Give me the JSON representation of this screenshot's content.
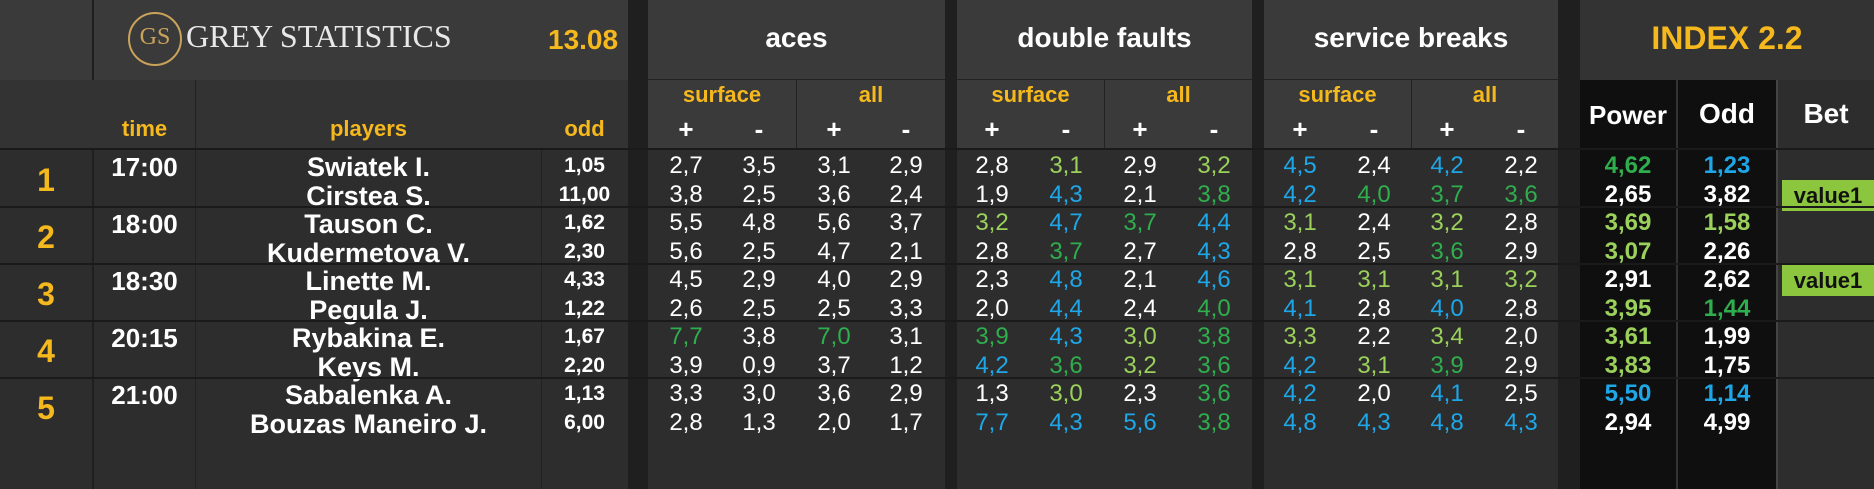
{
  "brand": {
    "logo_text": "GS",
    "name": "GREY STATISTICS",
    "date": "13.08"
  },
  "groups": {
    "aces": "aces",
    "double_faults": "double faults",
    "service_breaks": "service breaks",
    "index": "INDEX 2.2"
  },
  "subgroups": {
    "surface": "surface",
    "all": "all",
    "plus": "+",
    "minus": "-"
  },
  "columns": {
    "time": "time",
    "players": "players",
    "odd": "odd",
    "power": "Power",
    "index_odd": "Odd",
    "bet": "Bet"
  },
  "colors": {
    "accent": "#f5b81d",
    "white": "#ffffff",
    "light_green": "#9bd15b",
    "green": "#2fae4e",
    "blue": "#1ea7e8",
    "bet_bg": "#8cc63e"
  },
  "matches": [
    {
      "num": "1",
      "time": "17:00",
      "players": [
        {
          "name": "Swiatek I.",
          "odd": "1,05",
          "stats": [
            [
              "2,7",
              "w"
            ],
            [
              "3,5",
              "w"
            ],
            [
              "3,1",
              "w"
            ],
            [
              "2,9",
              "w"
            ],
            [
              "2,8",
              "w"
            ],
            [
              "3,1",
              "lg"
            ],
            [
              "2,9",
              "w"
            ],
            [
              "3,2",
              "lg"
            ],
            [
              "4,5",
              "b"
            ],
            [
              "2,4",
              "w"
            ],
            [
              "4,2",
              "b"
            ],
            [
              "2,2",
              "w"
            ]
          ],
          "power": [
            "4,62",
            "g"
          ],
          "index_odd": [
            "1,23",
            "b"
          ],
          "bet": ""
        },
        {
          "name": "Cirstea S.",
          "odd": "11,00",
          "stats": [
            [
              "3,8",
              "w"
            ],
            [
              "2,5",
              "w"
            ],
            [
              "3,6",
              "w"
            ],
            [
              "2,4",
              "w"
            ],
            [
              "1,9",
              "w"
            ],
            [
              "4,3",
              "b"
            ],
            [
              "2,1",
              "w"
            ],
            [
              "3,8",
              "g"
            ],
            [
              "4,2",
              "b"
            ],
            [
              "4,0",
              "g"
            ],
            [
              "3,7",
              "g"
            ],
            [
              "3,6",
              "g"
            ]
          ],
          "power": [
            "2,65",
            "w"
          ],
          "index_odd": [
            "3,82",
            "w"
          ],
          "bet": "value1"
        }
      ]
    },
    {
      "num": "2",
      "time": "18:00",
      "players": [
        {
          "name": "Tauson C.",
          "odd": "1,62",
          "stats": [
            [
              "5,5",
              "w"
            ],
            [
              "4,8",
              "w"
            ],
            [
              "5,6",
              "w"
            ],
            [
              "3,7",
              "w"
            ],
            [
              "3,2",
              "lg"
            ],
            [
              "4,7",
              "b"
            ],
            [
              "3,7",
              "g"
            ],
            [
              "4,4",
              "b"
            ],
            [
              "3,1",
              "lg"
            ],
            [
              "2,4",
              "w"
            ],
            [
              "3,2",
              "lg"
            ],
            [
              "2,8",
              "w"
            ]
          ],
          "power": [
            "3,69",
            "lg"
          ],
          "index_odd": [
            "1,58",
            "lg"
          ],
          "bet": ""
        },
        {
          "name": "Kudermetova V.",
          "odd": "2,30",
          "stats": [
            [
              "5,6",
              "w"
            ],
            [
              "2,5",
              "w"
            ],
            [
              "4,7",
              "w"
            ],
            [
              "2,1",
              "w"
            ],
            [
              "2,8",
              "w"
            ],
            [
              "3,7",
              "g"
            ],
            [
              "2,7",
              "w"
            ],
            [
              "4,3",
              "b"
            ],
            [
              "2,8",
              "w"
            ],
            [
              "2,5",
              "w"
            ],
            [
              "3,6",
              "g"
            ],
            [
              "2,9",
              "w"
            ]
          ],
          "power": [
            "3,07",
            "lg"
          ],
          "index_odd": [
            "2,26",
            "w"
          ],
          "bet": ""
        }
      ]
    },
    {
      "num": "3",
      "time": "18:30",
      "players": [
        {
          "name": "Linette M.",
          "odd": "4,33",
          "stats": [
            [
              "4,5",
              "w"
            ],
            [
              "2,9",
              "w"
            ],
            [
              "4,0",
              "w"
            ],
            [
              "2,9",
              "w"
            ],
            [
              "2,3",
              "w"
            ],
            [
              "4,8",
              "b"
            ],
            [
              "2,1",
              "w"
            ],
            [
              "4,6",
              "b"
            ],
            [
              "3,1",
              "lg"
            ],
            [
              "3,1",
              "lg"
            ],
            [
              "3,1",
              "lg"
            ],
            [
              "3,2",
              "lg"
            ]
          ],
          "power": [
            "2,91",
            "w"
          ],
          "index_odd": [
            "2,62",
            "w"
          ],
          "bet": "value1"
        },
        {
          "name": "Pegula J.",
          "odd": "1,22",
          "stats": [
            [
              "2,6",
              "w"
            ],
            [
              "2,5",
              "w"
            ],
            [
              "2,5",
              "w"
            ],
            [
              "3,3",
              "w"
            ],
            [
              "2,0",
              "w"
            ],
            [
              "4,4",
              "b"
            ],
            [
              "2,4",
              "w"
            ],
            [
              "4,0",
              "g"
            ],
            [
              "4,1",
              "b"
            ],
            [
              "2,8",
              "w"
            ],
            [
              "4,0",
              "b"
            ],
            [
              "2,8",
              "w"
            ]
          ],
          "power": [
            "3,95",
            "lg"
          ],
          "index_odd": [
            "1,44",
            "g"
          ],
          "bet": ""
        }
      ]
    },
    {
      "num": "4",
      "time": "20:15",
      "players": [
        {
          "name": "Rybakina E.",
          "odd": "1,67",
          "stats": [
            [
              "7,7",
              "g"
            ],
            [
              "3,8",
              "w"
            ],
            [
              "7,0",
              "g"
            ],
            [
              "3,1",
              "w"
            ],
            [
              "3,9",
              "g"
            ],
            [
              "4,3",
              "b"
            ],
            [
              "3,0",
              "lg"
            ],
            [
              "3,8",
              "g"
            ],
            [
              "3,3",
              "lg"
            ],
            [
              "2,2",
              "w"
            ],
            [
              "3,4",
              "lg"
            ],
            [
              "2,0",
              "w"
            ]
          ],
          "power": [
            "3,61",
            "lg"
          ],
          "index_odd": [
            "1,99",
            "w"
          ],
          "bet": ""
        },
        {
          "name": "Keys M.",
          "odd": "2,20",
          "stats": [
            [
              "3,9",
              "w"
            ],
            [
              "0,9",
              "w"
            ],
            [
              "3,7",
              "w"
            ],
            [
              "1,2",
              "w"
            ],
            [
              "4,2",
              "b"
            ],
            [
              "3,6",
              "g"
            ],
            [
              "3,2",
              "lg"
            ],
            [
              "3,6",
              "g"
            ],
            [
              "4,2",
              "b"
            ],
            [
              "3,1",
              "lg"
            ],
            [
              "3,9",
              "g"
            ],
            [
              "2,9",
              "w"
            ]
          ],
          "power": [
            "3,83",
            "lg"
          ],
          "index_odd": [
            "1,75",
            "w"
          ],
          "bet": ""
        }
      ]
    },
    {
      "num": "5",
      "time": "21:00",
      "players": [
        {
          "name": "Sabalenka A.",
          "odd": "1,13",
          "stats": [
            [
              "3,3",
              "w"
            ],
            [
              "3,0",
              "w"
            ],
            [
              "3,6",
              "w"
            ],
            [
              "2,9",
              "w"
            ],
            [
              "1,3",
              "w"
            ],
            [
              "3,0",
              "lg"
            ],
            [
              "2,3",
              "w"
            ],
            [
              "3,6",
              "g"
            ],
            [
              "4,2",
              "b"
            ],
            [
              "2,0",
              "w"
            ],
            [
              "4,1",
              "b"
            ],
            [
              "2,5",
              "w"
            ]
          ],
          "power": [
            "5,50",
            "b"
          ],
          "index_odd": [
            "1,14",
            "b"
          ],
          "bet": ""
        },
        {
          "name": "Bouzas Maneiro J.",
          "odd": "6,00",
          "stats": [
            [
              "2,8",
              "w"
            ],
            [
              "1,3",
              "w"
            ],
            [
              "2,0",
              "w"
            ],
            [
              "1,7",
              "w"
            ],
            [
              "7,7",
              "b"
            ],
            [
              "4,3",
              "b"
            ],
            [
              "5,6",
              "b"
            ],
            [
              "3,8",
              "g"
            ],
            [
              "4,8",
              "b"
            ],
            [
              "4,3",
              "b"
            ],
            [
              "4,8",
              "b"
            ],
            [
              "4,3",
              "b"
            ]
          ],
          "power": [
            "2,94",
            "w"
          ],
          "index_odd": [
            "4,99",
            "w"
          ],
          "bet": ""
        }
      ]
    }
  ]
}
